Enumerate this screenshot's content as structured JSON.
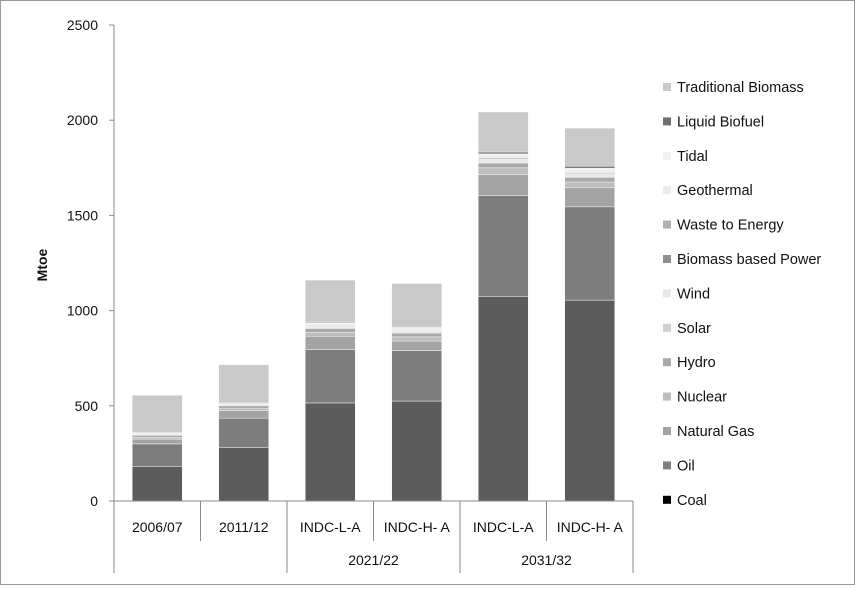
{
  "chart_data": {
    "type": "bar",
    "stacked": true,
    "title": "",
    "xlabel": "",
    "ylabel": "Mtoe",
    "ylim": [
      0,
      2500
    ],
    "yticks": [
      0,
      500,
      1000,
      1500,
      2000,
      2500
    ],
    "grid": false,
    "legend_position": "right",
    "categories": [
      "2006/07",
      "2011/12",
      "INDC-L-A",
      "INDC-H- A",
      "INDC-L-A",
      "INDC-H- A"
    ],
    "category_groups": [
      {
        "label": "2021/22",
        "start": 2,
        "end": 3
      },
      {
        "label": "2031/32",
        "start": 4,
        "end": 5
      }
    ],
    "series": [
      {
        "name": "Coal",
        "color": "#5c5c5c",
        "values": [
          180,
          280,
          515,
          525,
          1075,
          1055
        ]
      },
      {
        "name": "Oil",
        "color": "#7d7d7d",
        "values": [
          120,
          155,
          280,
          265,
          530,
          490
        ]
      },
      {
        "name": "Natural Gas",
        "color": "#a3a3a3",
        "values": [
          25,
          40,
          70,
          50,
          110,
          100
        ]
      },
      {
        "name": "Nuclear",
        "color": "#bdbdbd",
        "values": [
          10,
          10,
          20,
          22,
          35,
          30
        ]
      },
      {
        "name": "Hydro",
        "color": "#a9a9a9",
        "values": [
          12,
          15,
          20,
          20,
          25,
          25
        ]
      },
      {
        "name": "Solar",
        "color": "#d0d0d0",
        "values": [
          1,
          5,
          5,
          5,
          5,
          5
        ]
      },
      {
        "name": "Wind",
        "color": "#e8e8e8",
        "values": [
          5,
          5,
          10,
          10,
          15,
          15
        ]
      },
      {
        "name": "Biomass based Power",
        "color": "#8f8f8f",
        "values": [
          3,
          2,
          3,
          3,
          5,
          5
        ]
      },
      {
        "name": "Waste to Energy",
        "color": "#b0b0b0",
        "values": [
          1,
          1,
          2,
          2,
          3,
          3
        ]
      },
      {
        "name": "Geothermal",
        "color": "#ebebeb",
        "values": [
          0,
          0,
          5,
          5,
          10,
          10
        ]
      },
      {
        "name": "Tidal",
        "color": "#f2f2f2",
        "values": [
          0,
          0,
          5,
          5,
          10,
          10
        ]
      },
      {
        "name": "Liquid Biofuel",
        "color": "#707070",
        "values": [
          3,
          2,
          5,
          5,
          10,
          10
        ]
      },
      {
        "name": "Traditional Biomass",
        "color": "#c9c9c9",
        "values": [
          195,
          200,
          220,
          225,
          210,
          200
        ]
      }
    ]
  }
}
